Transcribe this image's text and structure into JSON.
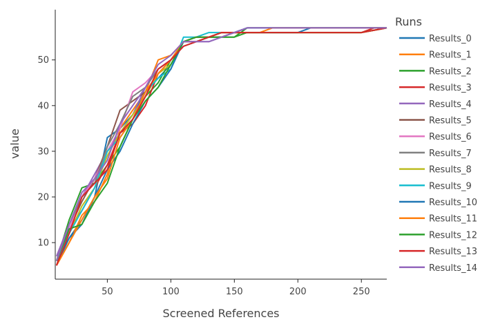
{
  "chart_data": {
    "type": "line",
    "xlabel": "Screened References",
    "ylabel": "value",
    "xlim": [
      9,
      270
    ],
    "ylim": [
      2,
      61
    ],
    "xticks": [
      50,
      100,
      150,
      200,
      250
    ],
    "yticks": [
      10,
      20,
      30,
      40,
      50
    ],
    "grid": false,
    "legend_title": "Runs",
    "legend_position": "right",
    "series": [
      {
        "name": "Results_0",
        "color": "#1f77b4",
        "x": [
          10,
          20,
          30,
          40,
          50,
          60,
          70,
          80,
          90,
          100,
          110,
          120,
          130,
          140,
          150,
          160,
          200,
          250,
          270
        ],
        "y": [
          6,
          11,
          15,
          20,
          33,
          35,
          38,
          43,
          46,
          49,
          54,
          55,
          55,
          56,
          56,
          57,
          57,
          57,
          57
        ]
      },
      {
        "name": "Results_1",
        "color": "#ff7f0e",
        "x": [
          10,
          20,
          30,
          40,
          50,
          60,
          70,
          80,
          90,
          100,
          110,
          120,
          130,
          140,
          150,
          160,
          170,
          200,
          250,
          270
        ],
        "y": [
          5,
          10,
          16,
          19,
          25,
          35,
          39,
          43,
          50,
          51,
          54,
          55,
          55,
          56,
          56,
          56,
          56,
          56,
          56,
          57
        ]
      },
      {
        "name": "Results_2",
        "color": "#2ca02c",
        "x": [
          10,
          20,
          30,
          40,
          50,
          60,
          70,
          80,
          90,
          100,
          110,
          120,
          130,
          140,
          150,
          160,
          200,
          250,
          270
        ],
        "y": [
          6,
          15,
          22,
          23,
          27,
          31,
          37,
          42,
          45,
          50,
          54,
          55,
          55,
          55,
          55,
          57,
          57,
          57,
          57
        ]
      },
      {
        "name": "Results_3",
        "color": "#d62728",
        "x": [
          10,
          20,
          30,
          40,
          50,
          60,
          70,
          80,
          90,
          100,
          110,
          120,
          130,
          140,
          150,
          160,
          200,
          250,
          260,
          270
        ],
        "y": [
          5,
          13,
          17,
          22,
          27,
          34,
          36,
          40,
          47,
          50,
          54,
          54,
          55,
          56,
          56,
          56,
          56,
          56,
          57,
          57
        ]
      },
      {
        "name": "Results_4",
        "color": "#9467bd",
        "x": [
          10,
          20,
          30,
          40,
          50,
          60,
          70,
          80,
          90,
          100,
          110,
          120,
          130,
          140,
          150,
          160,
          200,
          250,
          270
        ],
        "y": [
          7,
          14,
          20,
          25,
          30,
          34,
          38,
          44,
          48,
          50,
          54,
          54,
          54,
          55,
          56,
          57,
          57,
          57,
          57
        ]
      },
      {
        "name": "Results_5",
        "color": "#8c564b",
        "x": [
          10,
          20,
          30,
          40,
          50,
          60,
          70,
          80,
          90,
          100,
          110,
          120,
          130,
          140,
          150,
          160,
          200,
          250,
          270
        ],
        "y": [
          6,
          13,
          19,
          24,
          31,
          39,
          41,
          43,
          47,
          50,
          54,
          54,
          55,
          55,
          56,
          57,
          57,
          57,
          57
        ]
      },
      {
        "name": "Results_6",
        "color": "#e377c2",
        "x": [
          10,
          20,
          30,
          40,
          50,
          60,
          70,
          80,
          90,
          100,
          110,
          120,
          130,
          140,
          150,
          160,
          200,
          250,
          270
        ],
        "y": [
          6,
          13,
          20,
          24,
          30,
          35,
          43,
          45,
          48,
          50,
          54,
          55,
          55,
          56,
          56,
          57,
          57,
          57,
          57
        ]
      },
      {
        "name": "Results_7",
        "color": "#7f7f7f",
        "x": [
          10,
          20,
          30,
          40,
          50,
          60,
          70,
          80,
          90,
          100,
          110,
          120,
          130,
          140,
          150,
          160,
          200,
          250,
          270
        ],
        "y": [
          6,
          14,
          20,
          23,
          31,
          36,
          42,
          44,
          48,
          50,
          53,
          54,
          55,
          55,
          56,
          57,
          57,
          57,
          57
        ]
      },
      {
        "name": "Results_8",
        "color": "#bcbd22",
        "x": [
          10,
          20,
          30,
          40,
          50,
          60,
          70,
          80,
          90,
          100,
          110,
          120,
          130,
          140,
          150,
          160,
          200,
          250,
          270
        ],
        "y": [
          6,
          12,
          18,
          22,
          29,
          34,
          38,
          42,
          47,
          49,
          54,
          55,
          55,
          56,
          56,
          56,
          56,
          56,
          57
        ]
      },
      {
        "name": "Results_9",
        "color": "#17becf",
        "x": [
          10,
          20,
          30,
          40,
          50,
          60,
          70,
          80,
          90,
          100,
          110,
          120,
          130,
          140,
          150,
          160,
          200,
          250,
          270
        ],
        "y": [
          6,
          12,
          17,
          22,
          30,
          33,
          37,
          43,
          46,
          48,
          55,
          55,
          56,
          56,
          56,
          57,
          57,
          57,
          57
        ]
      },
      {
        "name": "Results_10",
        "color": "#1f77b4",
        "x": [
          10,
          20,
          30,
          40,
          50,
          60,
          70,
          80,
          90,
          100,
          110,
          120,
          130,
          140,
          150,
          160,
          200,
          210,
          250,
          270
        ],
        "y": [
          5,
          11,
          14,
          20,
          26,
          30,
          36,
          41,
          44,
          48,
          54,
          55,
          55,
          56,
          56,
          56,
          56,
          57,
          57,
          57
        ]
      },
      {
        "name": "Results_11",
        "color": "#ff7f0e",
        "x": [
          10,
          20,
          30,
          40,
          50,
          60,
          70,
          80,
          90,
          100,
          110,
          120,
          130,
          140,
          150,
          160,
          170,
          180,
          200,
          250,
          270
        ],
        "y": [
          5,
          10,
          15,
          20,
          24,
          33,
          37,
          43,
          47,
          50,
          54,
          55,
          55,
          56,
          56,
          56,
          56,
          57,
          57,
          57,
          57
        ]
      },
      {
        "name": "Results_12",
        "color": "#2ca02c",
        "x": [
          10,
          20,
          30,
          40,
          50,
          60,
          70,
          80,
          90,
          100,
          110,
          120,
          130,
          140,
          150,
          160,
          200,
          250,
          270
        ],
        "y": [
          6,
          13,
          14,
          19,
          23,
          31,
          37,
          41,
          44,
          49,
          54,
          55,
          55,
          55,
          55,
          56,
          56,
          56,
          57
        ]
      },
      {
        "name": "Results_13",
        "color": "#d62728",
        "x": [
          10,
          20,
          30,
          40,
          50,
          60,
          70,
          80,
          90,
          100,
          110,
          120,
          130,
          140,
          150,
          160,
          200,
          250,
          270
        ],
        "y": [
          5,
          12,
          20,
          23,
          26,
          34,
          37,
          42,
          48,
          50,
          53,
          54,
          55,
          56,
          56,
          56,
          56,
          56,
          57
        ]
      },
      {
        "name": "Results_14",
        "color": "#9467bd",
        "x": [
          10,
          20,
          30,
          40,
          50,
          60,
          70,
          80,
          90,
          100,
          110,
          120,
          130,
          140,
          150,
          160,
          200,
          250,
          270
        ],
        "y": [
          6,
          14,
          21,
          24,
          28,
          36,
          40,
          44,
          49,
          51,
          54,
          54,
          54,
          55,
          56,
          57,
          57,
          57,
          57
        ]
      }
    ]
  }
}
